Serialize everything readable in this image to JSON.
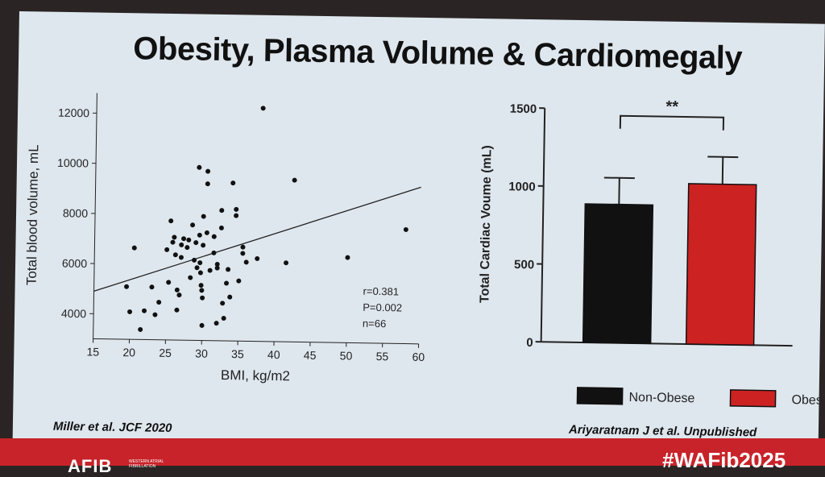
{
  "slide_title": "Obesity, Plasma Volume & Cardiomegaly",
  "chart_data": [
    {
      "type": "scatter",
      "xlabel": "BMI, kg/m2",
      "ylabel": "Total blood volume, mL",
      "xlim": [
        15,
        60
      ],
      "ylim": [
        3000,
        12800
      ],
      "xticks": [
        15,
        20,
        25,
        30,
        35,
        40,
        45,
        50,
        55,
        60
      ],
      "yticks": [
        4000,
        6000,
        8000,
        10000,
        12000
      ],
      "points": [
        [
          19.5,
          5100
        ],
        [
          20,
          4100
        ],
        [
          20.5,
          6650
        ],
        [
          21.5,
          3400
        ],
        [
          22,
          4150
        ],
        [
          23,
          5100
        ],
        [
          23.5,
          4000
        ],
        [
          24,
          4500
        ],
        [
          25,
          6600
        ],
        [
          25.3,
          5300
        ],
        [
          25.5,
          7750
        ],
        [
          25.8,
          6900
        ],
        [
          26,
          7100
        ],
        [
          26.2,
          6400
        ],
        [
          26.5,
          4200
        ],
        [
          26.5,
          5000
        ],
        [
          26.8,
          4800
        ],
        [
          27,
          6300
        ],
        [
          27,
          6800
        ],
        [
          27.3,
          7050
        ],
        [
          27.8,
          6700
        ],
        [
          28,
          7000
        ],
        [
          28.3,
          5500
        ],
        [
          28.5,
          7600
        ],
        [
          28.8,
          6200
        ],
        [
          29,
          6900
        ],
        [
          29.2,
          5900
        ],
        [
          29.3,
          9900
        ],
        [
          29.5,
          7200
        ],
        [
          29.6,
          6100
        ],
        [
          29.7,
          5700
        ],
        [
          29.8,
          5200
        ],
        [
          29.9,
          5000
        ],
        [
          30,
          4700
        ],
        [
          30,
          3600
        ],
        [
          30,
          7950
        ],
        [
          30,
          6800
        ],
        [
          30.5,
          7300
        ],
        [
          30.5,
          9750
        ],
        [
          30.5,
          9250
        ],
        [
          31,
          5800
        ],
        [
          31.5,
          6500
        ],
        [
          31.5,
          7150
        ],
        [
          32,
          5900
        ],
        [
          32,
          6050
        ],
        [
          32,
          3700
        ],
        [
          32.5,
          8200
        ],
        [
          32.5,
          7500
        ],
        [
          32.8,
          4500
        ],
        [
          33,
          3900
        ],
        [
          33.3,
          5300
        ],
        [
          33.5,
          5850
        ],
        [
          33.8,
          4750
        ],
        [
          34,
          9300
        ],
        [
          34.5,
          8250
        ],
        [
          34.5,
          8000
        ],
        [
          35,
          5400
        ],
        [
          35.5,
          6750
        ],
        [
          35.5,
          6500
        ],
        [
          36,
          6150
        ],
        [
          37.5,
          6300
        ],
        [
          38,
          12300
        ],
        [
          41.5,
          6150
        ],
        [
          42.5,
          9450
        ],
        [
          50,
          6400
        ],
        [
          58,
          7550
        ]
      ],
      "fit_line": [
        [
          15,
          4900
        ],
        [
          60,
          9250
        ]
      ],
      "annotation": [
        "r=0.381",
        "P=0.002",
        "n=66"
      ]
    },
    {
      "type": "bar",
      "ylabel": "Total Cardiac Voume (mL)",
      "ylim": [
        0,
        1500
      ],
      "yticks": [
        0,
        500,
        1000,
        1500
      ],
      "categories": [
        "Non-Obese",
        "Obese"
      ],
      "values": [
        890,
        1030
      ],
      "errors": [
        170,
        175
      ],
      "colors": [
        "#111111",
        "#cc2222"
      ],
      "significance": "**",
      "legend": [
        "Non-Obese",
        "Obese"
      ]
    }
  ],
  "citation_left": "Miller et al. JCF 2020",
  "citation_right": "Ariyaratnam J et al. Unpublished",
  "footer": {
    "logo": "AFIB",
    "logo_sub": "WESTERN ATRIAL FIBRILLATION",
    "hashtag": "#WAFib2025"
  }
}
